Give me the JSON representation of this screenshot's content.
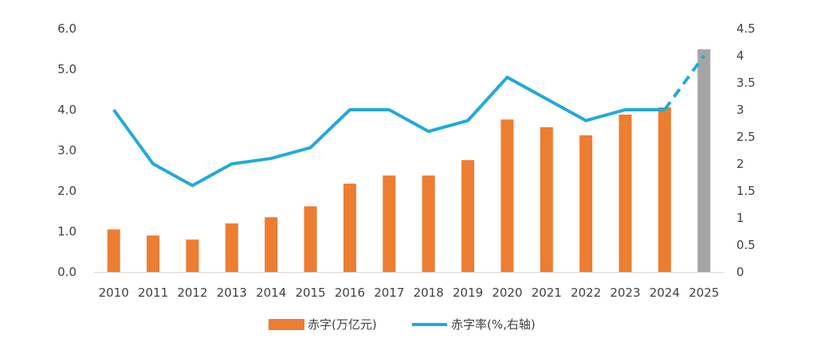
{
  "chart_data": {
    "type": "bar",
    "categories": [
      "2010",
      "2011",
      "2012",
      "2013",
      "2014",
      "2015",
      "2016",
      "2017",
      "2018",
      "2019",
      "2020",
      "2021",
      "2022",
      "2023",
      "2024",
      "2025"
    ],
    "series": [
      {
        "name": "赤字(万亿元)",
        "type": "bar",
        "axis": "left",
        "values": [
          1.05,
          0.9,
          0.8,
          1.2,
          1.35,
          1.62,
          2.18,
          2.38,
          2.38,
          2.76,
          3.76,
          3.57,
          3.37,
          3.88,
          4.06,
          5.49
        ],
        "color": "#ed7d31",
        "highlight_color": "#a5a5a5",
        "highlight_categories": [
          "2025"
        ]
      },
      {
        "name": "赤字率(%,右轴)",
        "type": "line",
        "axis": "right",
        "values": [
          3.0,
          2.0,
          1.6,
          2.0,
          2.1,
          2.3,
          3.0,
          3.0,
          2.6,
          2.8,
          3.6,
          3.2,
          2.8,
          3.0,
          3.0,
          4.0
        ],
        "color": "#21aad9",
        "dashed_categories": [
          "2024",
          "2025"
        ]
      }
    ],
    "left_axis": {
      "ylim": [
        0,
        6
      ],
      "ticks": [
        "0.0",
        "1.0",
        "2.0",
        "3.0",
        "4.0",
        "5.0",
        "6.0"
      ]
    },
    "right_axis": {
      "ylim": [
        0,
        4.5
      ],
      "ticks": [
        "0",
        "0.5",
        "1",
        "1.5",
        "2",
        "2.5",
        "3",
        "3.5",
        "4",
        "4.5"
      ]
    },
    "grid": false,
    "legend": {
      "placement": "bottom",
      "items": [
        "赤字(万亿元)",
        "赤字率(%,右轴)"
      ]
    }
  }
}
